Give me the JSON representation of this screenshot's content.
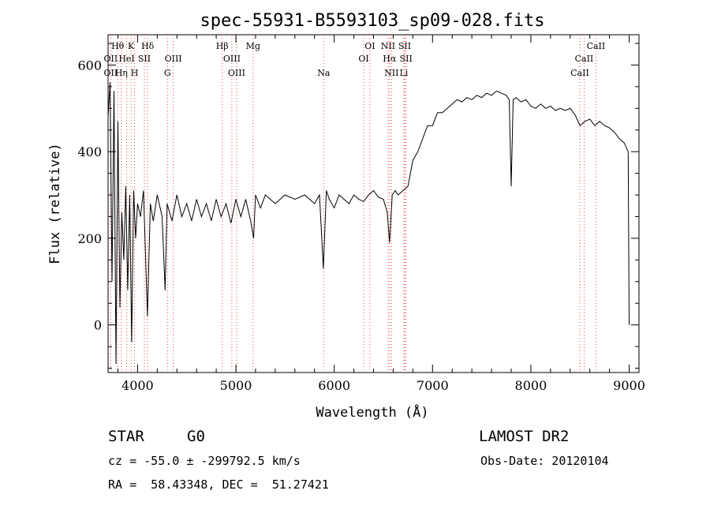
{
  "chart_data": {
    "type": "line",
    "title": "spec-55931-B5593103_sp09-028.fits",
    "xlabel": "Wavelength (Å)",
    "ylabel": "Flux (relative)",
    "xlim": [
      3700,
      9100
    ],
    "ylim": [
      -110,
      670
    ],
    "x_ticks": [
      4000,
      5000,
      6000,
      7000,
      8000,
      9000
    ],
    "y_ticks": [
      0,
      200,
      400,
      600
    ],
    "grid": false,
    "series": [
      {
        "x": [
          3700,
          3720,
          3740,
          3760,
          3780,
          3800,
          3820,
          3840,
          3860,
          3880,
          3900,
          3920,
          3940,
          3960,
          3980,
          4000,
          4030,
          4060,
          4100,
          4130,
          4160,
          4200,
          4250,
          4280,
          4300,
          4350,
          4400,
          4450,
          4500,
          4550,
          4600,
          4650,
          4700,
          4750,
          4800,
          4850,
          4900,
          4950,
          5000,
          5050,
          5100,
          5150,
          5180,
          5200,
          5250,
          5300,
          5400,
          5500,
          5600,
          5700,
          5800,
          5850,
          5890,
          5920,
          5950,
          6000,
          6050,
          6100,
          6150,
          6200,
          6250,
          6300,
          6350,
          6400,
          6450,
          6500,
          6540,
          6563,
          6590,
          6620,
          6650,
          6700,
          6750,
          6800,
          6850,
          6900,
          6950,
          7000,
          7050,
          7100,
          7150,
          7200,
          7250,
          7300,
          7350,
          7400,
          7450,
          7500,
          7550,
          7600,
          7650,
          7700,
          7750,
          7780,
          7800,
          7820,
          7850,
          7900,
          7950,
          8000,
          8050,
          8100,
          8150,
          8200,
          8250,
          8300,
          8350,
          8400,
          8450,
          8500,
          8550,
          8600,
          8650,
          8700,
          8750,
          8800,
          8850,
          8900,
          8950,
          8990,
          9000
        ],
        "y": [
          480,
          560,
          100,
          540,
          -90,
          470,
          40,
          260,
          150,
          320,
          80,
          300,
          -40,
          310,
          200,
          280,
          250,
          310,
          20,
          280,
          240,
          300,
          250,
          80,
          280,
          240,
          300,
          250,
          280,
          240,
          290,
          250,
          280,
          240,
          290,
          250,
          280,
          235,
          290,
          250,
          290,
          240,
          200,
          300,
          270,
          300,
          280,
          300,
          290,
          300,
          280,
          300,
          130,
          310,
          290,
          270,
          300,
          290,
          280,
          300,
          290,
          285,
          300,
          310,
          295,
          290,
          260,
          190,
          300,
          310,
          300,
          310,
          320,
          380,
          400,
          430,
          460,
          460,
          490,
          490,
          500,
          510,
          520,
          515,
          525,
          520,
          530,
          525,
          535,
          530,
          540,
          535,
          530,
          520,
          320,
          520,
          525,
          515,
          520,
          505,
          500,
          510,
          500,
          505,
          495,
          500,
          495,
          500,
          485,
          460,
          470,
          475,
          460,
          470,
          460,
          455,
          445,
          430,
          420,
          400,
          0
        ]
      }
    ],
    "line_markers": [
      {
        "label": "Hθ",
        "x": 3798,
        "row": 1
      },
      {
        "label": "OII",
        "x": 3727,
        "row": 2
      },
      {
        "label": "OII",
        "x": 3727,
        "row": 3
      },
      {
        "label": "K",
        "x": 3934,
        "row": 1
      },
      {
        "label": "HeI",
        "x": 3889,
        "row": 2
      },
      {
        "label": "Hη",
        "x": 3835,
        "row": 3
      },
      {
        "label": "SII",
        "x": 4069,
        "row": 2
      },
      {
        "label": "H",
        "x": 3969,
        "row": 3
      },
      {
        "label": "Hδ",
        "x": 4102,
        "row": 1
      },
      {
        "label": "OIII",
        "x": 4363,
        "row": 2
      },
      {
        "label": "G",
        "x": 4304,
        "row": 3
      },
      {
        "label": "Hβ",
        "x": 4861,
        "row": 1
      },
      {
        "label": "OIII",
        "x": 4959,
        "row": 2
      },
      {
        "label": "OIII",
        "x": 5007,
        "row": 3
      },
      {
        "label": "Mg",
        "x": 5175,
        "row": 1
      },
      {
        "label": "Na",
        "x": 5893,
        "row": 3
      },
      {
        "label": "OI",
        "x": 6363,
        "row": 1
      },
      {
        "label": "OI",
        "x": 6300,
        "row": 2
      },
      {
        "label": "NII",
        "x": 6548,
        "row": 1
      },
      {
        "label": "Hα",
        "x": 6563,
        "row": 2
      },
      {
        "label": "NII",
        "x": 6583,
        "row": 3
      },
      {
        "label": "SII",
        "x": 6717,
        "row": 1
      },
      {
        "label": "SII",
        "x": 6731,
        "row": 2
      },
      {
        "label": "Li",
        "x": 6708,
        "row": 3
      },
      {
        "label": "CaII",
        "x": 8662,
        "row": 1
      },
      {
        "label": "CaII",
        "x": 8542,
        "row": 2
      },
      {
        "label": "CaII",
        "x": 8498,
        "row": 3
      }
    ]
  },
  "footer": {
    "object_class": "STAR",
    "subclass": "G0",
    "survey": "LAMOST DR2",
    "redshift_line": "cz = -55.0 ± -299792.5 km/s",
    "obs_date_line": "Obs-Date: 20120104",
    "coords_line": "RA =  58.43348, DEC =  51.27421"
  }
}
